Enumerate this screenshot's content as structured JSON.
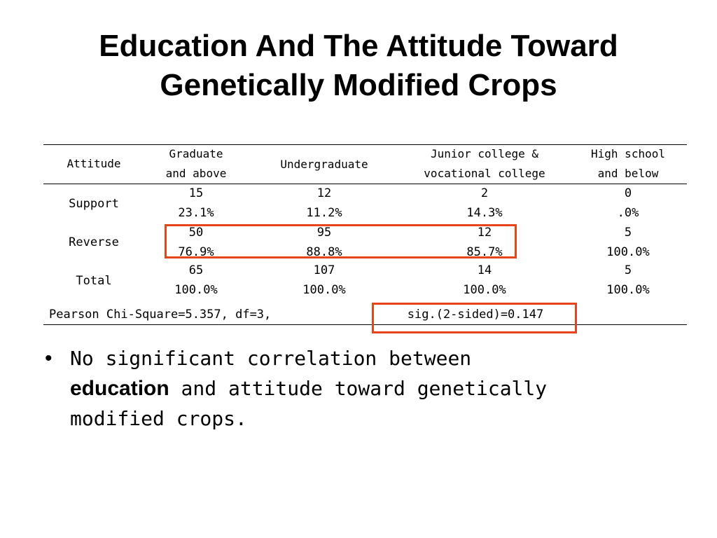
{
  "slide": {
    "title_line1": "Education And The Attitude Toward",
    "title_line2": "Genetically Modified Crops"
  },
  "table": {
    "header": {
      "attitude": "Attitude",
      "col1_line1": "Graduate",
      "col1_line2": "and above",
      "col2": "Undergraduate",
      "col3_line1": "Junior college &",
      "col3_line2": "vocational college",
      "col4_line1": "High school",
      "col4_line2": "and below"
    },
    "rows": [
      {
        "label": "Support",
        "counts": [
          "15",
          "12",
          "2",
          "0"
        ],
        "percents": [
          "23.1%",
          "11.2%",
          "14.3%",
          ".0%"
        ]
      },
      {
        "label": "Reverse",
        "counts": [
          "50",
          "95",
          "12",
          "5"
        ],
        "percents": [
          "76.9%",
          "88.8%",
          "85.7%",
          "100.0%"
        ]
      },
      {
        "label": "Total",
        "counts": [
          "65",
          "107",
          "14",
          "5"
        ],
        "percents": [
          "100.0%",
          "100.0%",
          "100.0%",
          "100.0%"
        ]
      }
    ],
    "footer_stat": "Pearson Chi-Square=5.357, df=3,",
    "footer_sig": "sig.(2-sided)=0.147"
  },
  "bullet": {
    "part1": "No significant correlation between",
    "bold": "education",
    "part2": " and attitude toward genetically",
    "part3": "modified crops."
  },
  "colors": {
    "highlight": "#e8441c"
  }
}
